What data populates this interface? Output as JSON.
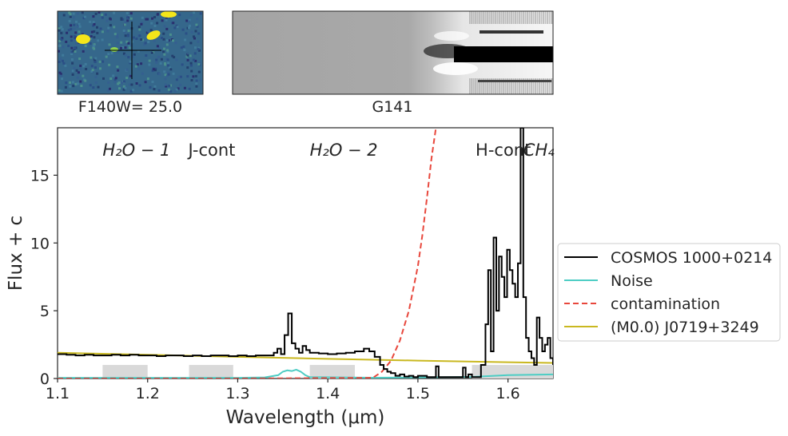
{
  "thumbnails": {
    "direct_label": "F140W= 25.0",
    "grism_label": "G141"
  },
  "chart_data": {
    "type": "line",
    "xlabel": "Wavelength (μm)",
    "ylabel": "Flux + c",
    "xlim": [
      1.1,
      1.65
    ],
    "ylim": [
      0,
      18.5
    ],
    "xticks": [
      {
        "v": 1.1,
        "t": "1.1"
      },
      {
        "v": 1.2,
        "t": "1.2"
      },
      {
        "v": 1.3,
        "t": "1.3"
      },
      {
        "v": 1.4,
        "t": "1.4"
      },
      {
        "v": 1.5,
        "t": "1.5"
      },
      {
        "v": 1.6,
        "t": "1.6"
      }
    ],
    "yticks": [
      {
        "v": 0,
        "t": "0"
      },
      {
        "v": 5,
        "t": "5"
      },
      {
        "v": 10,
        "t": "10"
      },
      {
        "v": 15,
        "t": "15"
      }
    ],
    "grid": false,
    "legend_position": "right, outside",
    "annotations": [
      {
        "text": "H₂O − 1",
        "x": 1.15,
        "y": 16.8,
        "italic": true
      },
      {
        "text": "J-cont",
        "x": 1.245,
        "y": 16.8,
        "italic": false
      },
      {
        "text": "H₂O − 2",
        "x": 1.38,
        "y": 16.8,
        "italic": true
      },
      {
        "text": "H-cont",
        "x": 1.564,
        "y": 16.8,
        "italic": false
      },
      {
        "text": "CH₄",
        "x": 1.617,
        "y": 16.8,
        "italic": true
      }
    ],
    "shaded_regions": [
      {
        "x0": 1.15,
        "x1": 1.2,
        "y0": 0,
        "y1": 1.0
      },
      {
        "x0": 1.246,
        "x1": 1.295,
        "y0": 0,
        "y1": 1.0
      },
      {
        "x0": 1.38,
        "x1": 1.43,
        "y0": 0,
        "y1": 1.0
      },
      {
        "x0": 1.56,
        "x1": 1.65,
        "y0": 0,
        "y1": 1.0
      }
    ],
    "series": [
      {
        "name": "COSMOS 1000+0214",
        "color": "#000000",
        "style": "step",
        "x": [
          1.1,
          1.11,
          1.12,
          1.13,
          1.14,
          1.15,
          1.16,
          1.17,
          1.18,
          1.19,
          1.2,
          1.21,
          1.22,
          1.23,
          1.24,
          1.25,
          1.26,
          1.27,
          1.28,
          1.29,
          1.3,
          1.31,
          1.32,
          1.33,
          1.34,
          1.344,
          1.348,
          1.352,
          1.356,
          1.36,
          1.364,
          1.368,
          1.372,
          1.376,
          1.38,
          1.39,
          1.4,
          1.41,
          1.42,
          1.43,
          1.44,
          1.446,
          1.452,
          1.458,
          1.462,
          1.466,
          1.47,
          1.475,
          1.48,
          1.485,
          1.49,
          1.495,
          1.5,
          1.51,
          1.52,
          1.523,
          1.53,
          1.54,
          1.55,
          1.553,
          1.556,
          1.56,
          1.57,
          1.575,
          1.578,
          1.581,
          1.584,
          1.587,
          1.59,
          1.593,
          1.596,
          1.599,
          1.602,
          1.605,
          1.608,
          1.611,
          1.614,
          1.617,
          1.62,
          1.623,
          1.626,
          1.629,
          1.632,
          1.635,
          1.638,
          1.641,
          1.644,
          1.647,
          1.65
        ],
        "values": [
          1.8,
          1.75,
          1.7,
          1.75,
          1.7,
          1.7,
          1.75,
          1.7,
          1.75,
          1.7,
          1.7,
          1.65,
          1.7,
          1.7,
          1.65,
          1.7,
          1.65,
          1.7,
          1.7,
          1.65,
          1.7,
          1.65,
          1.7,
          1.7,
          1.9,
          2.2,
          1.8,
          3.2,
          4.8,
          2.6,
          2.2,
          1.9,
          2.4,
          2.1,
          1.9,
          1.85,
          1.8,
          1.85,
          1.9,
          2.0,
          2.2,
          2.0,
          1.6,
          1.0,
          0.7,
          0.5,
          0.4,
          0.2,
          0.3,
          0.15,
          0.2,
          0.1,
          0.2,
          0.1,
          0.9,
          0.1,
          0.1,
          0.1,
          0.8,
          0.1,
          0.3,
          0.1,
          1.0,
          4.0,
          8.0,
          2.0,
          10.4,
          5.0,
          9.0,
          7.5,
          6.0,
          9.5,
          8.0,
          7.0,
          6.0,
          8.5,
          18.5,
          6.0,
          3.0,
          2.0,
          1.5,
          1.0,
          4.5,
          3.0,
          2.0,
          2.5,
          3.0,
          1.5,
          1.0
        ]
      },
      {
        "name": "Noise",
        "color": "#4ecdc4",
        "style": "line",
        "x": [
          1.1,
          1.2,
          1.3,
          1.33,
          1.345,
          1.35,
          1.355,
          1.36,
          1.365,
          1.37,
          1.375,
          1.38,
          1.45,
          1.5,
          1.56,
          1.6,
          1.65
        ],
        "values": [
          0.05,
          0.05,
          0.05,
          0.08,
          0.25,
          0.5,
          0.6,
          0.55,
          0.65,
          0.5,
          0.25,
          0.1,
          0.06,
          0.08,
          0.12,
          0.25,
          0.3
        ]
      },
      {
        "name": "contamination",
        "color": "#e8473c",
        "style": "dashed",
        "x": [
          1.1,
          1.3,
          1.45,
          1.46,
          1.47,
          1.48,
          1.49,
          1.5,
          1.505,
          1.51,
          1.515,
          1.52
        ],
        "values": [
          0,
          0,
          0.05,
          0.5,
          1.3,
          2.8,
          5.0,
          8.3,
          10.6,
          13.3,
          16.2,
          18.5
        ]
      },
      {
        "name": "(M0.0) J0719+3249",
        "color": "#c9b820",
        "style": "line",
        "x": [
          1.1,
          1.2,
          1.3,
          1.4,
          1.5,
          1.6,
          1.65
        ],
        "values": [
          1.9,
          1.75,
          1.6,
          1.45,
          1.32,
          1.2,
          1.15
        ]
      }
    ]
  }
}
